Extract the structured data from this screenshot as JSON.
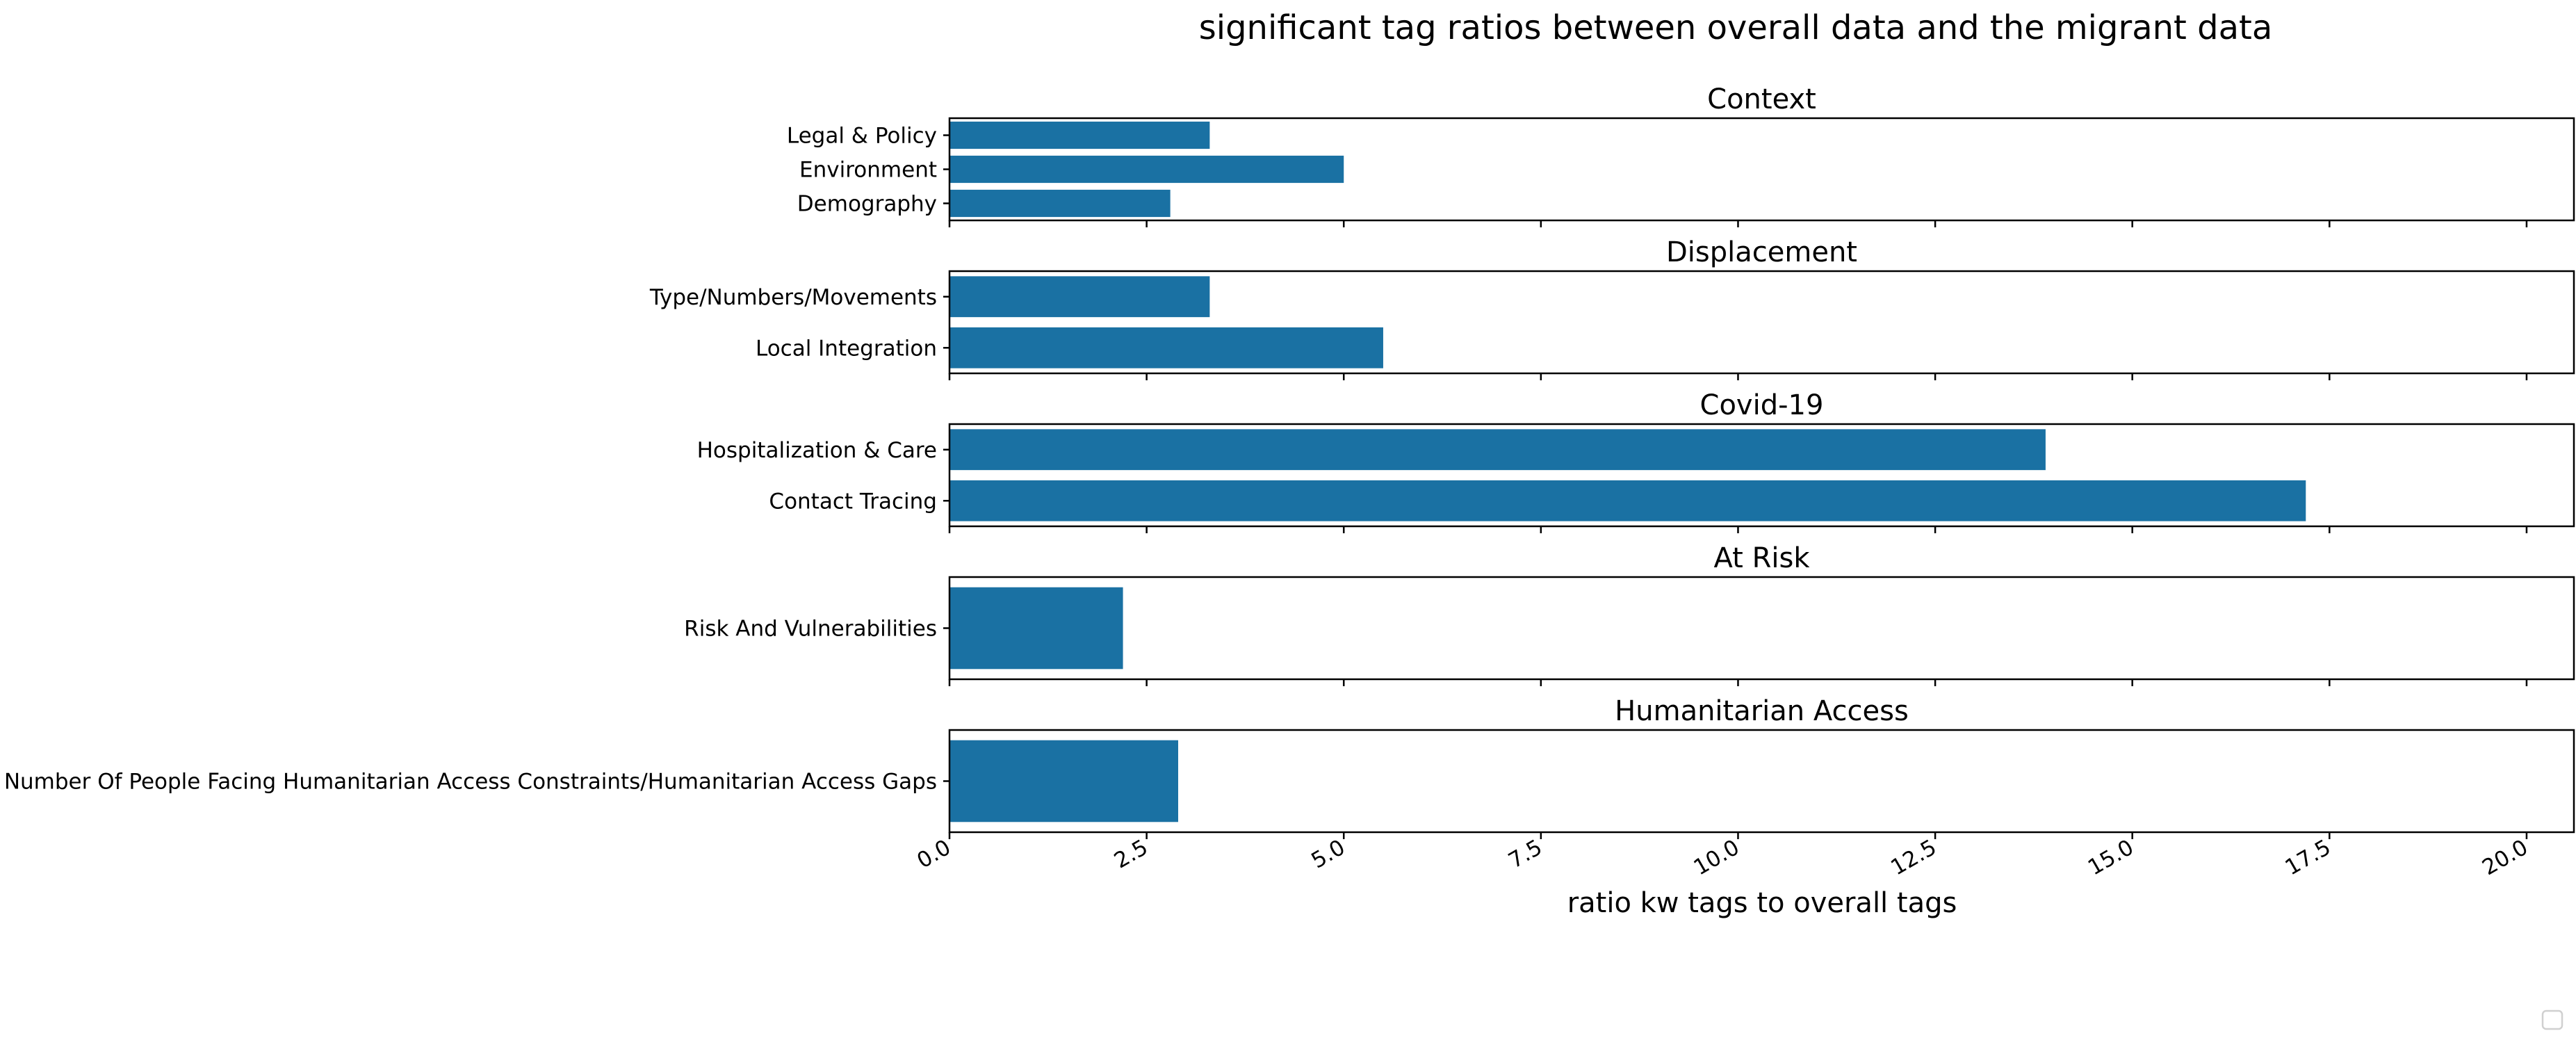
{
  "chart_data": {
    "type": "bar",
    "orientation": "horizontal",
    "title": "significant tag ratios between overall data and the migrant data",
    "xlabel": "ratio kw tags to overall tags",
    "xlim": [
      0,
      20.6
    ],
    "xticks": [
      "0.0",
      "2.5",
      "5.0",
      "7.5",
      "10.0",
      "12.5",
      "15.0",
      "17.5",
      "20.0"
    ],
    "grid": false,
    "bar_color": "#1a71a3",
    "panels": [
      {
        "title": "Context",
        "categories": [
          "Legal & Policy",
          "Environment",
          "Demography"
        ],
        "values": [
          3.3,
          5.0,
          2.8
        ]
      },
      {
        "title": "Displacement",
        "categories": [
          "Type/Numbers/Movements",
          "Local Integration"
        ],
        "values": [
          3.3,
          5.5
        ]
      },
      {
        "title": "Covid-19",
        "categories": [
          "Hospitalization & Care",
          "Contact Tracing"
        ],
        "values": [
          13.9,
          17.2
        ]
      },
      {
        "title": "At Risk",
        "categories": [
          "Risk And Vulnerabilities"
        ],
        "values": [
          2.2
        ]
      },
      {
        "title": "Humanitarian Access",
        "categories": [
          "Number Of People Facing Humanitarian Access Constraints/Humanitarian Access Gaps"
        ],
        "values": [
          2.9
        ]
      }
    ],
    "legend": {
      "placement": "bottom-right",
      "entries": []
    }
  }
}
